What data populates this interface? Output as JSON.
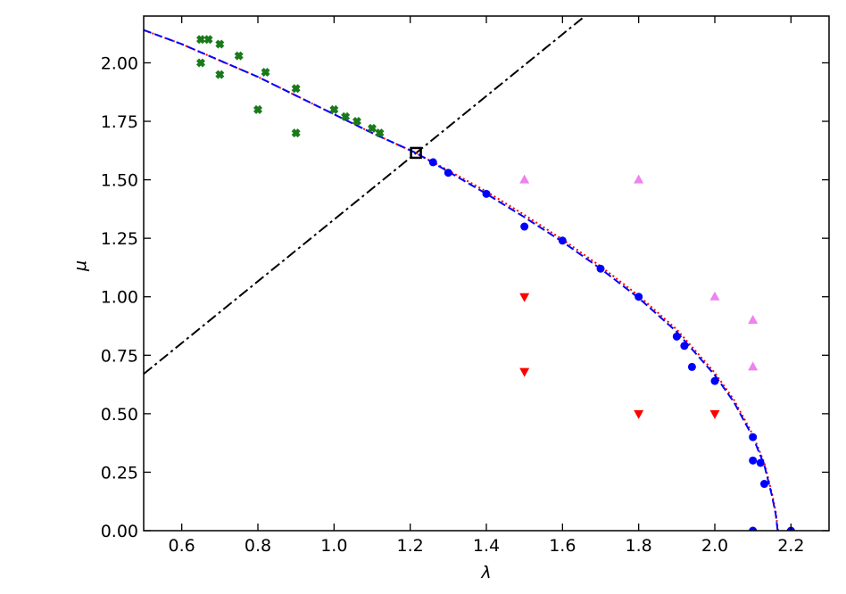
{
  "chart_data": {
    "type": "scatter",
    "xlabel": "λ",
    "ylabel": "μ",
    "xlim": [
      0.5,
      2.3
    ],
    "ylim": [
      0,
      2.2
    ],
    "xticks": [
      0.6,
      0.8,
      {
        "value": 1,
        "label": "1.0"
      },
      1.2,
      1.4,
      1.6,
      1.8,
      {
        "value": 2,
        "label": "2.0"
      },
      2.2
    ],
    "yticks": [
      {
        "value": 0,
        "label": "0.00"
      },
      {
        "value": 0.25,
        "label": "0.25"
      },
      {
        "value": 0.5,
        "label": "0.50"
      },
      {
        "value": 0.75,
        "label": "0.75"
      },
      {
        "value": 1,
        "label": "1.00"
      },
      {
        "value": 1.25,
        "label": "1.25"
      },
      {
        "value": 1.5,
        "label": "1.50"
      },
      {
        "value": 1.75,
        "label": "1.75"
      },
      {
        "value": 2,
        "label": "2.00"
      }
    ],
    "series": [
      {
        "type": "line",
        "style": "dashdot",
        "color": "#000000",
        "x": [
          0.5,
          1.659
        ],
        "values": [
          0.67,
          2.2
        ]
      },
      {
        "type": "line",
        "style": "dotted",
        "color": "#ff0000",
        "x": [
          0.5,
          0.6,
          0.7,
          0.8,
          0.9,
          1.0,
          1.1,
          1.215,
          1.3,
          1.4,
          1.5,
          1.6,
          1.7,
          1.8,
          1.9,
          2.0,
          2.05,
          2.1,
          2.13,
          2.15,
          2.16,
          2.166
        ],
        "values": [
          2.14,
          2.08,
          2.01,
          1.94,
          1.86,
          1.78,
          1.7,
          1.615,
          1.54,
          1.45,
          1.35,
          1.245,
          1.13,
          1.005,
          0.86,
          0.675,
          0.56,
          0.41,
          0.29,
          0.16,
          0.08,
          0.0
        ]
      },
      {
        "type": "line",
        "style": "dashed",
        "color": "#0000ff",
        "x": [
          0.5,
          0.6,
          0.7,
          0.8,
          0.9,
          1.0,
          1.1,
          1.215,
          1.3,
          1.4,
          1.5,
          1.6,
          1.7,
          1.8,
          1.9,
          2.0,
          2.05,
          2.1,
          2.13,
          2.15,
          2.16,
          2.165
        ],
        "values": [
          2.14,
          2.08,
          2.01,
          1.94,
          1.86,
          1.78,
          1.7,
          1.615,
          1.535,
          1.44,
          1.34,
          1.235,
          1.12,
          0.995,
          0.85,
          0.665,
          0.55,
          0.4,
          0.28,
          0.15,
          0.07,
          0.0
        ]
      },
      {
        "type": "scatter",
        "marker": "x",
        "color": "#1a7a1a",
        "x": [
          0.65,
          0.67,
          0.7,
          0.65,
          0.7,
          0.75,
          0.82,
          0.8,
          0.9,
          0.9,
          1.0,
          1.03,
          1.06,
          1.1,
          1.12
        ],
        "values": [
          2.1,
          2.1,
          2.08,
          2.0,
          1.95,
          2.03,
          1.96,
          1.8,
          1.89,
          1.7,
          1.8,
          1.77,
          1.75,
          1.72,
          1.7
        ]
      },
      {
        "type": "scatter",
        "marker": "circle",
        "color": "#0000ff",
        "x": [
          1.26,
          1.3,
          1.4,
          1.5,
          1.6,
          1.7,
          1.8,
          1.9,
          1.92,
          1.94,
          2.0,
          2.1,
          2.1,
          2.12,
          2.13,
          2.1,
          2.2
        ],
        "values": [
          1.575,
          1.53,
          1.44,
          1.3,
          1.24,
          1.12,
          1.0,
          0.83,
          0.79,
          0.7,
          0.64,
          0.4,
          0.3,
          0.29,
          0.2,
          0.0,
          0.0
        ]
      },
      {
        "type": "scatter",
        "marker": "triangle-up",
        "color": "#ee82ee",
        "x": [
          1.5,
          1.8,
          2.0,
          2.1,
          2.1
        ],
        "values": [
          1.5,
          1.5,
          1.0,
          0.9,
          0.7
        ]
      },
      {
        "type": "scatter",
        "marker": "triangle-down",
        "color": "#ff0000",
        "x": [
          1.5,
          1.5,
          1.8,
          2.0
        ],
        "values": [
          1.0,
          0.68,
          0.5,
          0.5
        ]
      },
      {
        "type": "scatter",
        "marker": "square",
        "color": "#000000",
        "x": [
          1.215
        ],
        "values": [
          1.615
        ]
      }
    ]
  }
}
